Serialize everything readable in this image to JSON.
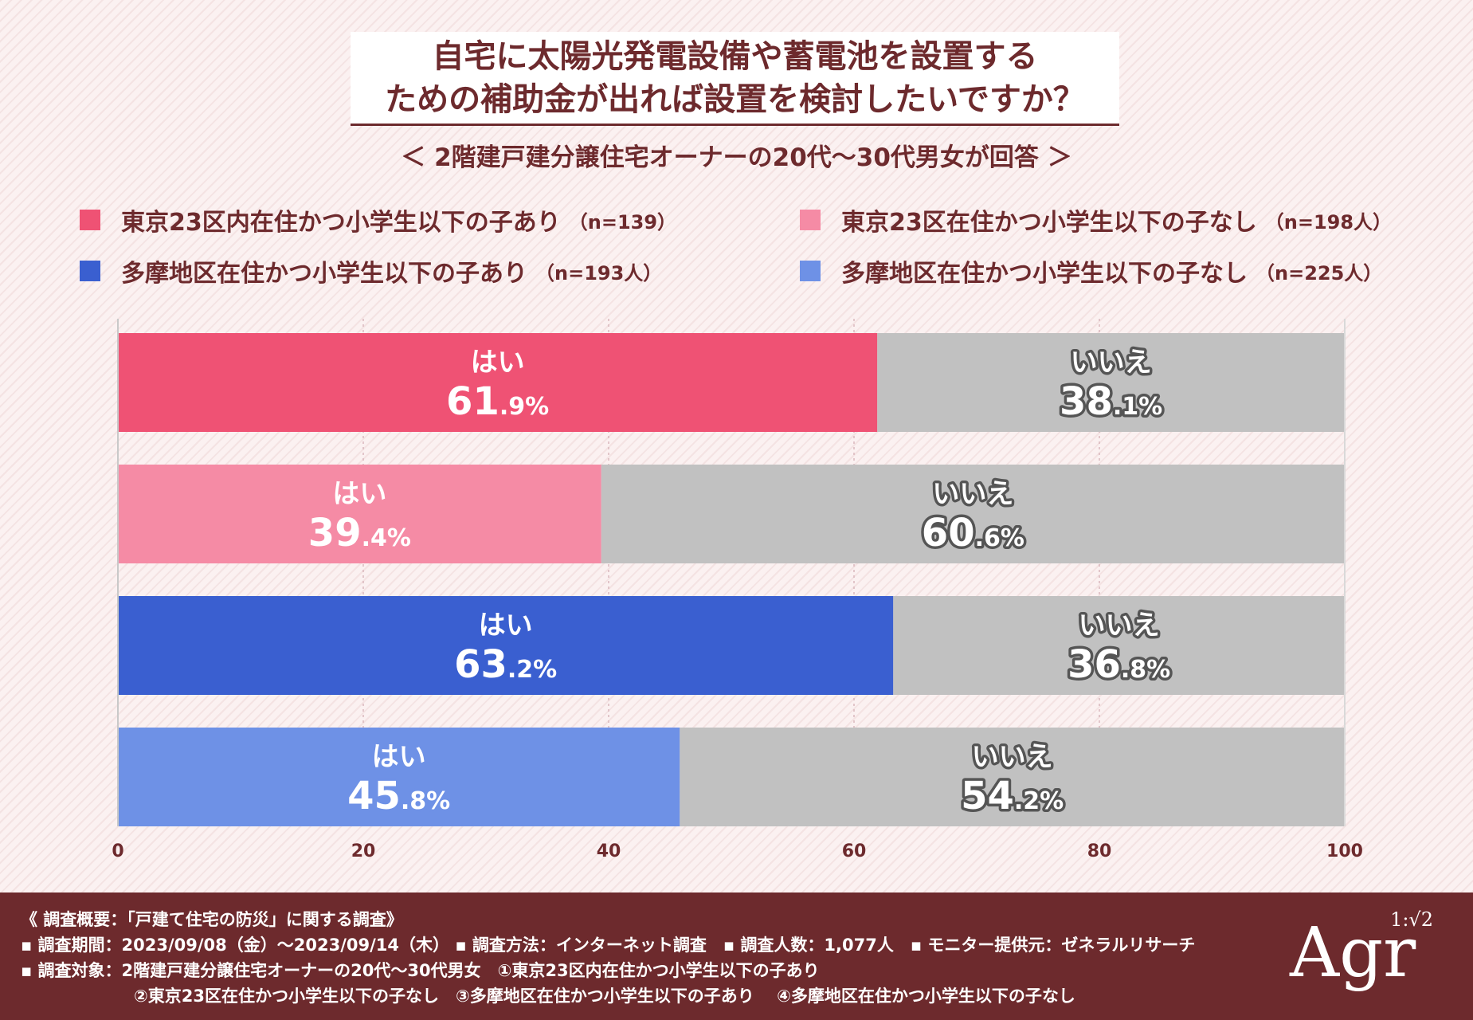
{
  "title": {
    "line1": "自宅に太陽光発電設備や蓄電池を設置する",
    "line2": "ための補助金が出れば設置を検討したいですか？"
  },
  "subtitle": "＜ 2階建戸建分譲住宅オーナーの20代～30代男女が回答 ＞",
  "legend": [
    {
      "label": "東京23区内在住かつ小学生以下の子あり",
      "n": "（n=139）",
      "color": "#ef5274"
    },
    {
      "label": "東京23区在住かつ小学生以下の子なし",
      "n": "（n=198人）",
      "color": "#f58ba5"
    },
    {
      "label": "多摩地区在住かつ小学生以下の子あり",
      "n": "（n=193人）",
      "color": "#3a5fd0"
    },
    {
      "label": "多摩地区在住かつ小学生以下の子なし",
      "n": "（n=225人）",
      "color": "#6e91e6"
    }
  ],
  "chart_data": {
    "type": "bar",
    "orientation": "horizontal-stacked",
    "categories": [
      "東京23区内在住かつ小学生以下の子あり",
      "東京23区在住かつ小学生以下の子なし",
      "多摩地区在住かつ小学生以下の子あり",
      "多摩地区在住かつ小学生以下の子なし"
    ],
    "series": [
      {
        "name": "はい",
        "values": [
          61.9,
          39.4,
          63.2,
          45.8
        ],
        "colors": [
          "#ef5274",
          "#f58ba5",
          "#3a5fd0",
          "#6e91e6"
        ]
      },
      {
        "name": "いいえ",
        "values": [
          38.1,
          60.6,
          36.8,
          54.2
        ],
        "color": "#c1c1c1"
      }
    ],
    "xlim": [
      0,
      100
    ],
    "xticks": [
      0,
      20,
      40,
      60,
      80,
      100
    ],
    "unit": "%",
    "grid": true
  },
  "footer": {
    "lines": [
      "《 調査概要：「戸建て住宅の防災」に関する調査》",
      "▪ 調査期間：2023/09/08（金）～2023/09/14（木） ▪ 調査方法：インターネット調査　▪ 調査人数：1,077人　▪ モニター提供元：ゼネラルリサーチ",
      "▪ 調査対象：2階建戸建分譲住宅オーナーの20代～30代男女　①東京23区内在住かつ小学生以下の子あり",
      "②東京23区在住かつ小学生以下の子なし　③多摩地区在住かつ小学生以下の子あり　 ④多摩地区在住かつ小学生以下の子なし"
    ]
  },
  "logo": {
    "text": "Agr",
    "ratio": "1:√2"
  }
}
